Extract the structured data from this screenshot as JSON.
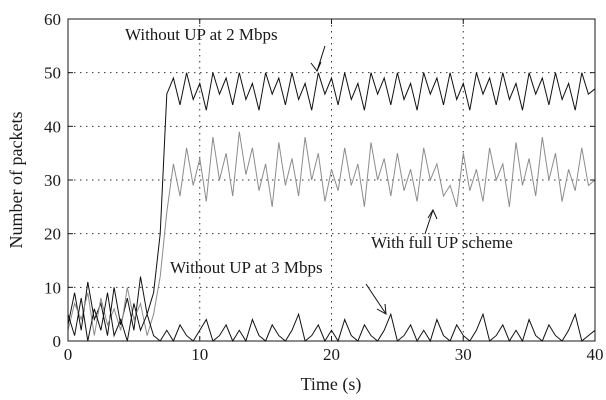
{
  "chart_data": {
    "type": "line",
    "xlabel": "Time (s)",
    "ylabel": "Number of packets",
    "xlim": [
      0,
      40
    ],
    "ylim": [
      0,
      60
    ],
    "xticks": [
      0,
      10,
      20,
      30,
      40
    ],
    "yticks": [
      0,
      10,
      20,
      30,
      40,
      50,
      60
    ],
    "grid": true,
    "x": [
      0,
      0.5,
      1,
      1.5,
      2,
      2.5,
      3,
      3.5,
      4,
      4.5,
      5,
      5.5,
      6,
      6.5,
      7,
      7.5,
      8,
      8.5,
      9,
      9.5,
      10,
      10.5,
      11,
      11.5,
      12,
      12.5,
      13,
      13.5,
      14,
      14.5,
      15,
      15.5,
      16,
      16.5,
      17,
      17.5,
      18,
      18.5,
      19,
      19.5,
      20,
      20.5,
      21,
      21.5,
      22,
      22.5,
      23,
      23.5,
      24,
      24.5,
      25,
      25.5,
      26,
      26.5,
      27,
      27.5,
      28,
      28.5,
      29,
      29.5,
      30,
      30.5,
      31,
      31.5,
      32,
      32.5,
      33,
      33.5,
      34,
      34.5,
      35,
      35.5,
      36,
      36.5,
      37,
      37.5,
      38,
      38.5,
      39,
      39.5,
      40
    ],
    "series": [
      {
        "color": "#111111",
        "values": [
          3,
          9,
          2,
          11,
          4,
          7,
          1,
          10,
          3,
          8,
          2,
          12,
          5,
          9,
          20,
          46,
          49,
          44,
          50,
          45,
          48,
          43,
          50,
          46,
          49,
          44,
          50,
          45,
          48,
          43,
          50,
          46,
          49,
          44,
          50,
          45,
          48,
          43,
          50,
          46,
          49,
          44,
          50,
          45,
          48,
          43,
          50,
          46,
          49,
          44,
          50,
          45,
          48,
          43,
          50,
          46,
          49,
          44,
          50,
          45,
          48,
          43,
          50,
          46,
          49,
          44,
          50,
          45,
          48,
          43,
          50,
          46,
          49,
          44,
          50,
          45,
          48,
          43,
          50,
          46,
          47
        ]
      },
      {
        "color": "#8c8c8c",
        "values": [
          2,
          7,
          4,
          9,
          1,
          8,
          3,
          6,
          2,
          10,
          4,
          7,
          1,
          5,
          12,
          24,
          33,
          27,
          36,
          29,
          34,
          26,
          38,
          30,
          35,
          27,
          39,
          31,
          36,
          28,
          33,
          25,
          37,
          29,
          34,
          27,
          38,
          30,
          35,
          26,
          32,
          28,
          36,
          29,
          33,
          25,
          37,
          30,
          34,
          27,
          35,
          28,
          32,
          26,
          36,
          30,
          33,
          27,
          29,
          25,
          35,
          28,
          32,
          26,
          36,
          30,
          33,
          25,
          37,
          29,
          34,
          27,
          38,
          30,
          35,
          26,
          32,
          28,
          36,
          29,
          30
        ]
      },
      {
        "color": "#111111",
        "values": [
          5,
          1,
          8,
          0,
          6,
          2,
          9,
          1,
          4,
          0,
          7,
          2,
          5,
          1,
          0,
          2,
          0,
          3,
          1,
          0,
          2,
          4,
          0,
          1,
          3,
          0,
          2,
          0,
          4,
          1,
          0,
          3,
          1,
          0,
          2,
          5,
          0,
          1,
          3,
          0,
          2,
          0,
          4,
          1,
          0,
          3,
          1,
          0,
          2,
          5,
          0,
          1,
          3,
          0,
          2,
          0,
          4,
          1,
          0,
          3,
          1,
          0,
          2,
          5,
          0,
          1,
          3,
          0,
          2,
          0,
          4,
          1,
          0,
          3,
          1,
          0,
          2,
          5,
          0,
          1,
          2
        ]
      }
    ],
    "annotations": [
      "Without UP at 2 Mbps",
      "With full UP scheme",
      "Without UP at 3 Mbps"
    ]
  }
}
